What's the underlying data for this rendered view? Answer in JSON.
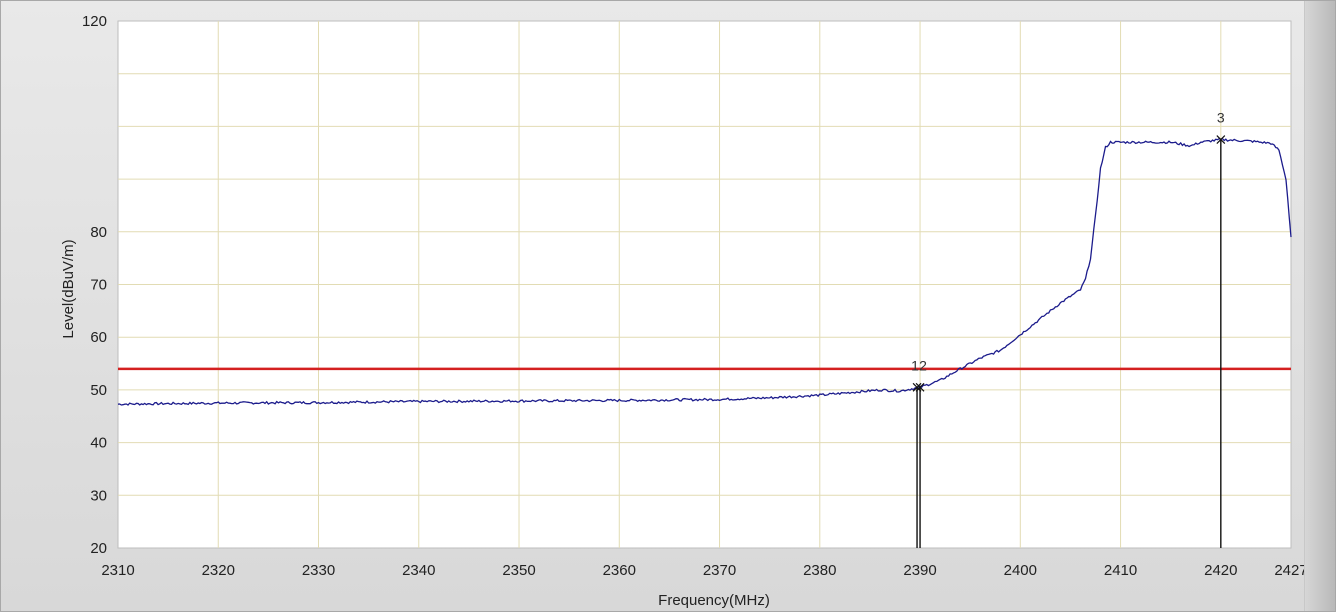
{
  "chart_data": {
    "type": "line",
    "xlabel": "Frequency(MHz)",
    "ylabel": "Level(dBuV/m)",
    "xlim": [
      2310,
      2427
    ],
    "ylim": [
      20,
      120
    ],
    "x_ticks": [
      2310,
      2320,
      2330,
      2340,
      2350,
      2360,
      2370,
      2380,
      2390,
      2400,
      2410,
      2420,
      2427
    ],
    "y_ticks": [
      20,
      30,
      40,
      50,
      60,
      70,
      80,
      120
    ],
    "grid": true,
    "colors": {
      "trace": "#1c1c8c",
      "limit": "#d42020",
      "marker": "#111111",
      "grid": "#e2dcb4"
    },
    "limit_line": {
      "y": 54
    },
    "series": [
      {
        "x": [
          2310,
          2320,
          2330,
          2340,
          2350,
          2360,
          2370,
          2375,
          2380,
          2383,
          2386,
          2388,
          2390,
          2392,
          2394,
          2396,
          2398,
          2400,
          2402,
          2404,
          2406,
          2406.5,
          2407,
          2407.5,
          2408,
          2408.5,
          2409,
          2412,
          2415,
          2417,
          2418,
          2420,
          2423,
          2425,
          2425.8,
          2426.5,
          2427
        ],
        "values": [
          47.3,
          47.5,
          47.6,
          47.8,
          47.9,
          48.0,
          48.2,
          48.5,
          49.0,
          49.5,
          50.0,
          49.8,
          50.5,
          51.8,
          54.0,
          56.0,
          57.5,
          60.5,
          63.5,
          66.5,
          69.0,
          71.0,
          75.0,
          83.0,
          92.0,
          96.0,
          97.0,
          97.0,
          97.0,
          96.3,
          97.0,
          97.5,
          97.2,
          96.8,
          95.5,
          90.0,
          79.0
        ]
      }
    ],
    "markers": [
      {
        "label": "1",
        "x": 2389.7,
        "y": 50.5
      },
      {
        "label": "2",
        "x": 2390.0,
        "y": 50.5
      },
      {
        "label": "3",
        "x": 2420.0,
        "y": 97.5
      }
    ]
  }
}
